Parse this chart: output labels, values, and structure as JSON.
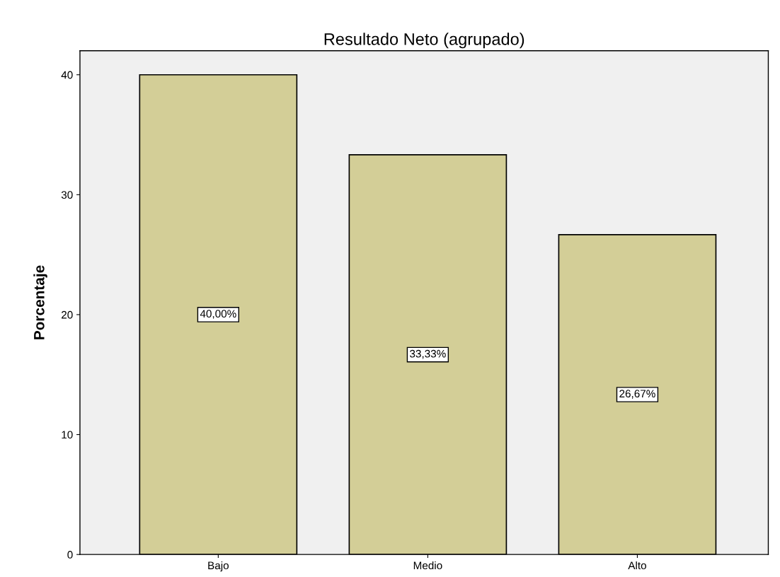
{
  "chart_data": {
    "type": "bar",
    "title": "Resultado Neto (agrupado)",
    "ylabel": "Porcentaje",
    "categories": [
      "Bajo",
      "Medio",
      "Alto"
    ],
    "values": [
      40.0,
      33.33,
      26.67
    ],
    "value_labels": [
      "40,00%",
      "33,33%",
      "26,67%"
    ],
    "color": "#d3ce97",
    "ylim": [
      0,
      42
    ],
    "yticks": [
      0,
      10,
      20,
      30,
      40
    ],
    "grid": false
  }
}
